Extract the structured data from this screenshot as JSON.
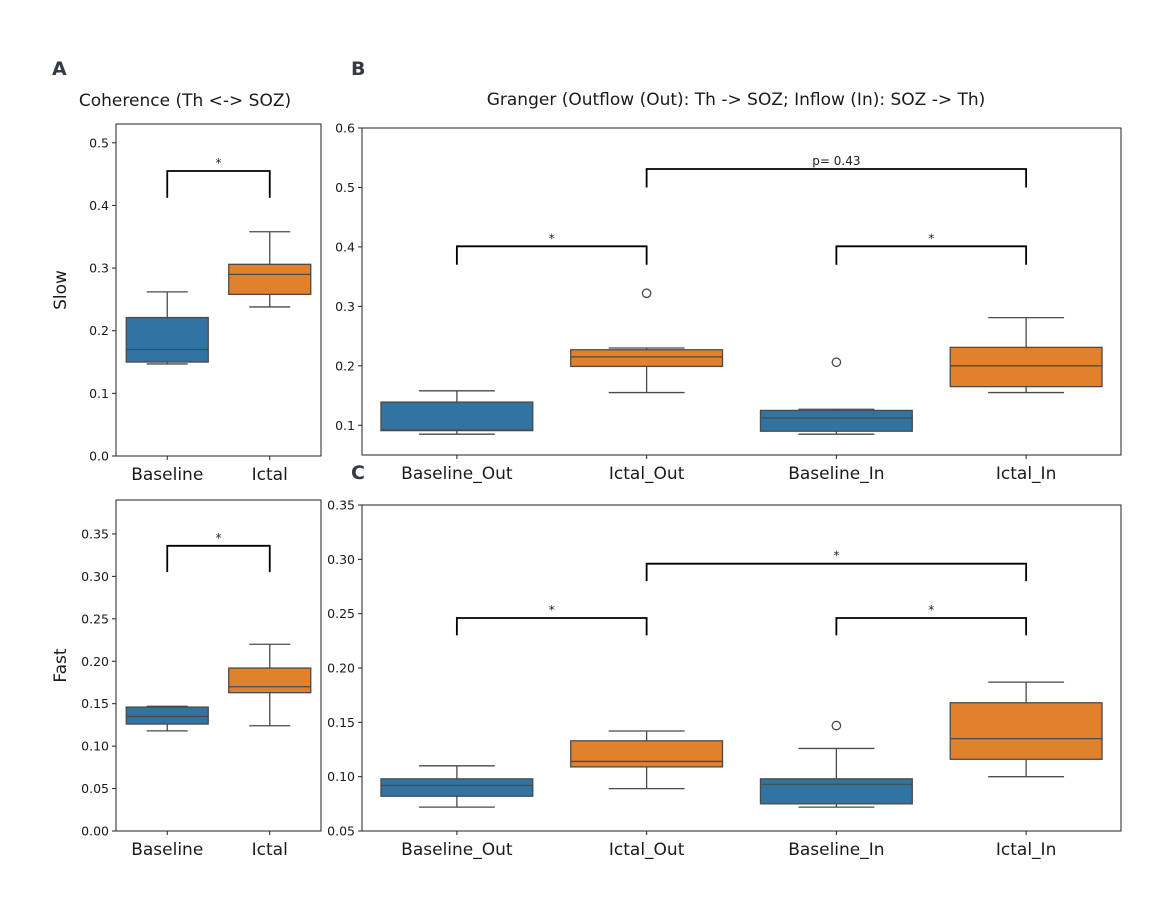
{
  "figure": {
    "panel_letters": [
      "A",
      "B",
      "C"
    ],
    "titles": {
      "coherence": "Coherence (Th <-> SOZ)",
      "granger": "Granger (Outflow (Out): Th -> SOZ; Inflow (In): SOZ -> Th)"
    },
    "colors": {
      "baseline": "#3274a1",
      "ictal": "#e1812c",
      "line": "#4a4a4a",
      "bracket": "#000000"
    }
  },
  "chart_data": [
    {
      "id": "coh-slow",
      "type": "box",
      "panel": "A",
      "title": "Coherence (Th <-> SOZ)",
      "ylabel": "Slow",
      "xlabel": "",
      "ylim": [
        0.0,
        0.53
      ],
      "yticks": [
        0.0,
        0.1,
        0.2,
        0.3,
        0.4,
        0.5
      ],
      "ytick_labels": [
        "0.0",
        "0.1",
        "0.2",
        "0.3",
        "0.4",
        "0.5"
      ],
      "categories": [
        "Baseline",
        "Ictal"
      ],
      "boxes": [
        {
          "category": "Baseline",
          "color": "baseline",
          "whislo": 0.147,
          "q1": 0.15,
          "med": 0.17,
          "q3": 0.221,
          "whishi": 0.262,
          "fliers": []
        },
        {
          "category": "Ictal",
          "color": "ictal",
          "whislo": 0.238,
          "q1": 0.258,
          "med": 0.29,
          "q3": 0.306,
          "whishi": 0.358,
          "fliers": []
        }
      ],
      "brackets": [
        {
          "from": 0,
          "to": 1,
          "y": 0.455,
          "leg": 0.412,
          "label": "*"
        }
      ]
    },
    {
      "id": "coh-fast",
      "type": "box",
      "panel": "A",
      "title": "",
      "ylabel": "Fast",
      "xlabel": "",
      "ylim": [
        0.0,
        0.39
      ],
      "yticks": [
        0.0,
        0.05,
        0.1,
        0.15,
        0.2,
        0.25,
        0.3,
        0.35
      ],
      "ytick_labels": [
        "0.00",
        "0.05",
        "0.10",
        "0.15",
        "0.20",
        "0.25",
        "0.30",
        "0.35"
      ],
      "categories": [
        "Baseline",
        "Ictal"
      ],
      "boxes": [
        {
          "category": "Baseline",
          "color": "baseline",
          "whislo": 0.118,
          "q1": 0.126,
          "med": 0.135,
          "q3": 0.146,
          "whishi": 0.147,
          "fliers": []
        },
        {
          "category": "Ictal",
          "color": "ictal",
          "whislo": 0.124,
          "q1": 0.163,
          "med": 0.17,
          "q3": 0.192,
          "whishi": 0.22,
          "fliers": []
        }
      ],
      "brackets": [
        {
          "from": 0,
          "to": 1,
          "y": 0.336,
          "leg": 0.305,
          "label": "*"
        }
      ]
    },
    {
      "id": "granger-slow",
      "type": "box",
      "panel": "B",
      "title": "Granger (Outflow (Out): Th -> SOZ; Inflow (In): SOZ -> Th)",
      "ylabel": "",
      "xlabel": "",
      "ylim": [
        0.05,
        0.6
      ],
      "yticks": [
        0.1,
        0.2,
        0.3,
        0.4,
        0.5,
        0.6
      ],
      "ytick_labels": [
        "0.1",
        "0.2",
        "0.3",
        "0.4",
        "0.5",
        "0.6"
      ],
      "categories": [
        "Baseline_Out",
        "Ictal_Out",
        "Baseline_In",
        "Ictal_In"
      ],
      "boxes": [
        {
          "category": "Baseline_Out",
          "color": "baseline",
          "whislo": 0.085,
          "q1": 0.091,
          "med": 0.092,
          "q3": 0.139,
          "whishi": 0.158,
          "fliers": []
        },
        {
          "category": "Ictal_Out",
          "color": "ictal",
          "whislo": 0.155,
          "q1": 0.199,
          "med": 0.215,
          "q3": 0.227,
          "whishi": 0.23,
          "fliers": [
            0.322
          ]
        },
        {
          "category": "Baseline_In",
          "color": "baseline",
          "whislo": 0.085,
          "q1": 0.09,
          "med": 0.112,
          "q3": 0.125,
          "whishi": 0.127,
          "fliers": [
            0.206
          ]
        },
        {
          "category": "Ictal_In",
          "color": "ictal",
          "whislo": 0.155,
          "q1": 0.165,
          "med": 0.2,
          "q3": 0.231,
          "whishi": 0.281,
          "fliers": []
        }
      ],
      "brackets": [
        {
          "from": 0,
          "to": 1,
          "y": 0.401,
          "leg": 0.37,
          "label": "*"
        },
        {
          "from": 1,
          "to": 3,
          "y": 0.531,
          "leg": 0.5,
          "label": "p= 0.43"
        },
        {
          "from": 2,
          "to": 3,
          "y": 0.401,
          "leg": 0.37,
          "label": "*"
        }
      ]
    },
    {
      "id": "granger-fast",
      "type": "box",
      "panel": "C",
      "title": "",
      "ylabel": "",
      "xlabel": "",
      "ylim": [
        0.05,
        0.35
      ],
      "yticks": [
        0.05,
        0.1,
        0.15,
        0.2,
        0.25,
        0.3,
        0.35
      ],
      "ytick_labels": [
        "0.05",
        "0.10",
        "0.15",
        "0.20",
        "0.25",
        "0.30",
        "0.35"
      ],
      "categories": [
        "Baseline_Out",
        "Ictal_Out",
        "Baseline_In",
        "Ictal_In"
      ],
      "boxes": [
        {
          "category": "Baseline_Out",
          "color": "baseline",
          "whislo": 0.072,
          "q1": 0.082,
          "med": 0.092,
          "q3": 0.098,
          "whishi": 0.11,
          "fliers": []
        },
        {
          "category": "Ictal_Out",
          "color": "ictal",
          "whislo": 0.089,
          "q1": 0.109,
          "med": 0.114,
          "q3": 0.133,
          "whishi": 0.142,
          "fliers": []
        },
        {
          "category": "Baseline_In",
          "color": "baseline",
          "whislo": 0.072,
          "q1": 0.075,
          "med": 0.093,
          "q3": 0.098,
          "whishi": 0.126,
          "fliers": [
            0.147
          ]
        },
        {
          "category": "Ictal_In",
          "color": "ictal",
          "whislo": 0.1,
          "q1": 0.116,
          "med": 0.135,
          "q3": 0.168,
          "whishi": 0.187,
          "fliers": []
        }
      ],
      "brackets": [
        {
          "from": 0,
          "to": 1,
          "y": 0.246,
          "leg": 0.23,
          "label": "*"
        },
        {
          "from": 1,
          "to": 3,
          "y": 0.296,
          "leg": 0.28,
          "label": "*"
        },
        {
          "from": 2,
          "to": 3,
          "y": 0.246,
          "leg": 0.23,
          "label": "*"
        }
      ]
    }
  ]
}
